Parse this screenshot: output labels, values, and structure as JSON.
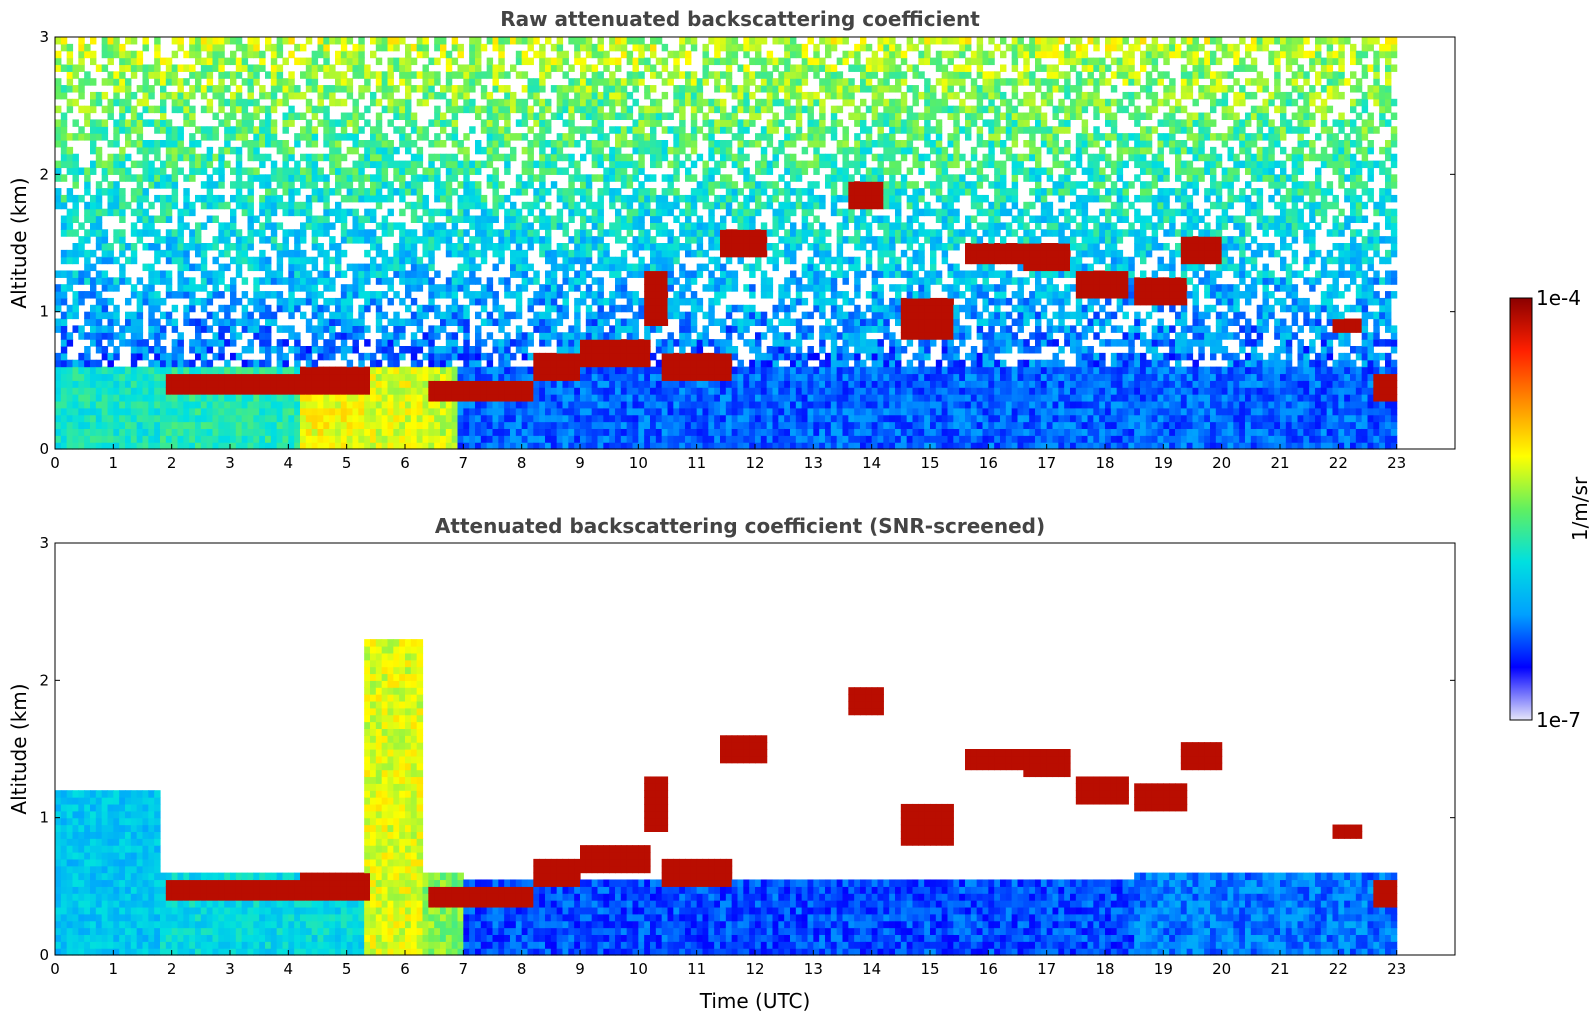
{
  "chart_data": [
    {
      "type": "heatmap",
      "title": "Raw attenuated backscattering coefficient",
      "xlabel": "",
      "ylabel": "Altitude (km)",
      "xlim": [
        0,
        24
      ],
      "ylim": [
        0,
        3
      ],
      "x_ticks": [
        "0",
        "1",
        "2",
        "3",
        "4",
        "5",
        "6",
        "7",
        "8",
        "9",
        "10",
        "11",
        "12",
        "13",
        "14",
        "15",
        "16",
        "17",
        "18",
        "19",
        "20",
        "21",
        "22",
        "23"
      ],
      "y_ticks": [
        "0",
        "1",
        "2",
        "3"
      ],
      "data_end_time": 23,
      "noise_level": "full",
      "boundary_layer": [
        {
          "t0": 0.0,
          "t1": 1.85,
          "top": 0.0,
          "level": 0.4
        },
        {
          "t0": 1.85,
          "t1": 4.2,
          "top": 0.0,
          "level": 0.42
        },
        {
          "t0": 4.2,
          "t1": 5.35,
          "top": 0.0,
          "level": 0.62
        },
        {
          "t0": 5.35,
          "t1": 6.35,
          "top": 0.0,
          "level": 0.6
        },
        {
          "t0": 6.35,
          "t1": 6.9,
          "top": 0.0,
          "level": 0.58
        },
        {
          "t0": 6.9,
          "t1": 23.0,
          "top": 0.0,
          "level": 0.2
        }
      ],
      "cloud_layers": [
        {
          "t0": 1.9,
          "t1": 4.2,
          "alt": 0.47,
          "thick": 0.08
        },
        {
          "t0": 4.2,
          "t1": 5.4,
          "alt": 0.5,
          "thick": 0.08
        },
        {
          "t0": 6.4,
          "t1": 8.2,
          "alt": 0.44,
          "thick": 0.07
        },
        {
          "t0": 8.2,
          "t1": 9.0,
          "alt": 0.58,
          "thick": 0.1
        },
        {
          "t0": 9.0,
          "t1": 10.2,
          "alt": 0.7,
          "thick": 0.12
        },
        {
          "t0": 10.1,
          "t1": 10.5,
          "alt": 1.1,
          "thick": 0.18
        },
        {
          "t0": 10.4,
          "t1": 11.6,
          "alt": 0.6,
          "thick": 0.1
        },
        {
          "t0": 11.4,
          "t1": 12.2,
          "alt": 1.5,
          "thick": 0.12
        },
        {
          "t0": 13.6,
          "t1": 14.2,
          "alt": 1.85,
          "thick": 0.12
        },
        {
          "t0": 14.5,
          "t1": 15.4,
          "alt": 0.95,
          "thick": 0.15
        },
        {
          "t0": 15.6,
          "t1": 16.6,
          "alt": 1.42,
          "thick": 0.08
        },
        {
          "t0": 16.6,
          "t1": 17.4,
          "alt": 1.4,
          "thick": 0.1
        },
        {
          "t0": 17.5,
          "t1": 18.4,
          "alt": 1.2,
          "thick": 0.12
        },
        {
          "t0": 18.5,
          "t1": 19.4,
          "alt": 1.15,
          "thick": 0.1
        },
        {
          "t0": 19.3,
          "t1": 20.0,
          "alt": 1.45,
          "thick": 0.08
        },
        {
          "t0": 21.9,
          "t1": 22.4,
          "alt": 0.88,
          "thick": 0.05
        },
        {
          "t0": 22.6,
          "t1": 23.0,
          "alt": 0.45,
          "thick": 0.1
        }
      ]
    },
    {
      "type": "heatmap",
      "title": "Attenuated backscattering coefficient (SNR-screened)",
      "xlabel": "Time (UTC)",
      "ylabel": "Altitude (km)",
      "xlim": [
        0,
        24
      ],
      "ylim": [
        0,
        3
      ],
      "x_ticks": [
        "0",
        "1",
        "2",
        "3",
        "4",
        "5",
        "6",
        "7",
        "8",
        "9",
        "10",
        "11",
        "12",
        "13",
        "14",
        "15",
        "16",
        "17",
        "18",
        "19",
        "20",
        "21",
        "22",
        "23"
      ],
      "y_ticks": [
        "0",
        "1",
        "2",
        "3"
      ],
      "data_end_time": 23,
      "noise_level": "screened",
      "boundary_layer": [
        {
          "t0": 0.0,
          "t1": 1.85,
          "top": 1.2,
          "level": 0.32
        },
        {
          "t0": 1.85,
          "t1": 5.35,
          "top": 0.62,
          "level": 0.36
        },
        {
          "t0": 5.35,
          "t1": 6.35,
          "top": 2.3,
          "level": 0.6
        },
        {
          "t0": 6.35,
          "t1": 7.0,
          "top": 0.6,
          "level": 0.52
        },
        {
          "t0": 7.0,
          "t1": 18.5,
          "top": 0.55,
          "level": 0.18
        },
        {
          "t0": 18.5,
          "t1": 23.0,
          "top": 0.6,
          "level": 0.22
        }
      ],
      "cloud_layers": [
        {
          "t0": 1.9,
          "t1": 4.2,
          "alt": 0.47,
          "thick": 0.08
        },
        {
          "t0": 4.2,
          "t1": 5.4,
          "alt": 0.5,
          "thick": 0.08
        },
        {
          "t0": 6.4,
          "t1": 8.2,
          "alt": 0.44,
          "thick": 0.07
        },
        {
          "t0": 8.2,
          "t1": 9.0,
          "alt": 0.58,
          "thick": 0.1
        },
        {
          "t0": 9.0,
          "t1": 10.2,
          "alt": 0.7,
          "thick": 0.12
        },
        {
          "t0": 10.1,
          "t1": 10.5,
          "alt": 1.1,
          "thick": 0.18
        },
        {
          "t0": 10.4,
          "t1": 11.6,
          "alt": 0.6,
          "thick": 0.1
        },
        {
          "t0": 11.4,
          "t1": 12.2,
          "alt": 1.5,
          "thick": 0.12
        },
        {
          "t0": 13.6,
          "t1": 14.2,
          "alt": 1.85,
          "thick": 0.12
        },
        {
          "t0": 14.5,
          "t1": 15.4,
          "alt": 0.95,
          "thick": 0.15
        },
        {
          "t0": 15.6,
          "t1": 16.6,
          "alt": 1.42,
          "thick": 0.08
        },
        {
          "t0": 16.6,
          "t1": 17.4,
          "alt": 1.4,
          "thick": 0.1
        },
        {
          "t0": 17.5,
          "t1": 18.4,
          "alt": 1.2,
          "thick": 0.12
        },
        {
          "t0": 18.5,
          "t1": 19.4,
          "alt": 1.15,
          "thick": 0.1
        },
        {
          "t0": 19.3,
          "t1": 20.0,
          "alt": 1.45,
          "thick": 0.08
        },
        {
          "t0": 21.9,
          "t1": 22.4,
          "alt": 0.88,
          "thick": 0.05
        },
        {
          "t0": 22.6,
          "t1": 23.0,
          "alt": 0.45,
          "thick": 0.1
        }
      ]
    }
  ],
  "colorbar": {
    "max_label": "1e-4",
    "min_label": "1e-7",
    "unit_label": "1/m/sr",
    "colors": [
      "#e6e6fa",
      "#0000ff",
      "#00a0ff",
      "#00e0e0",
      "#60f060",
      "#ffff00",
      "#ff9000",
      "#ff2000",
      "#8b0000"
    ]
  }
}
